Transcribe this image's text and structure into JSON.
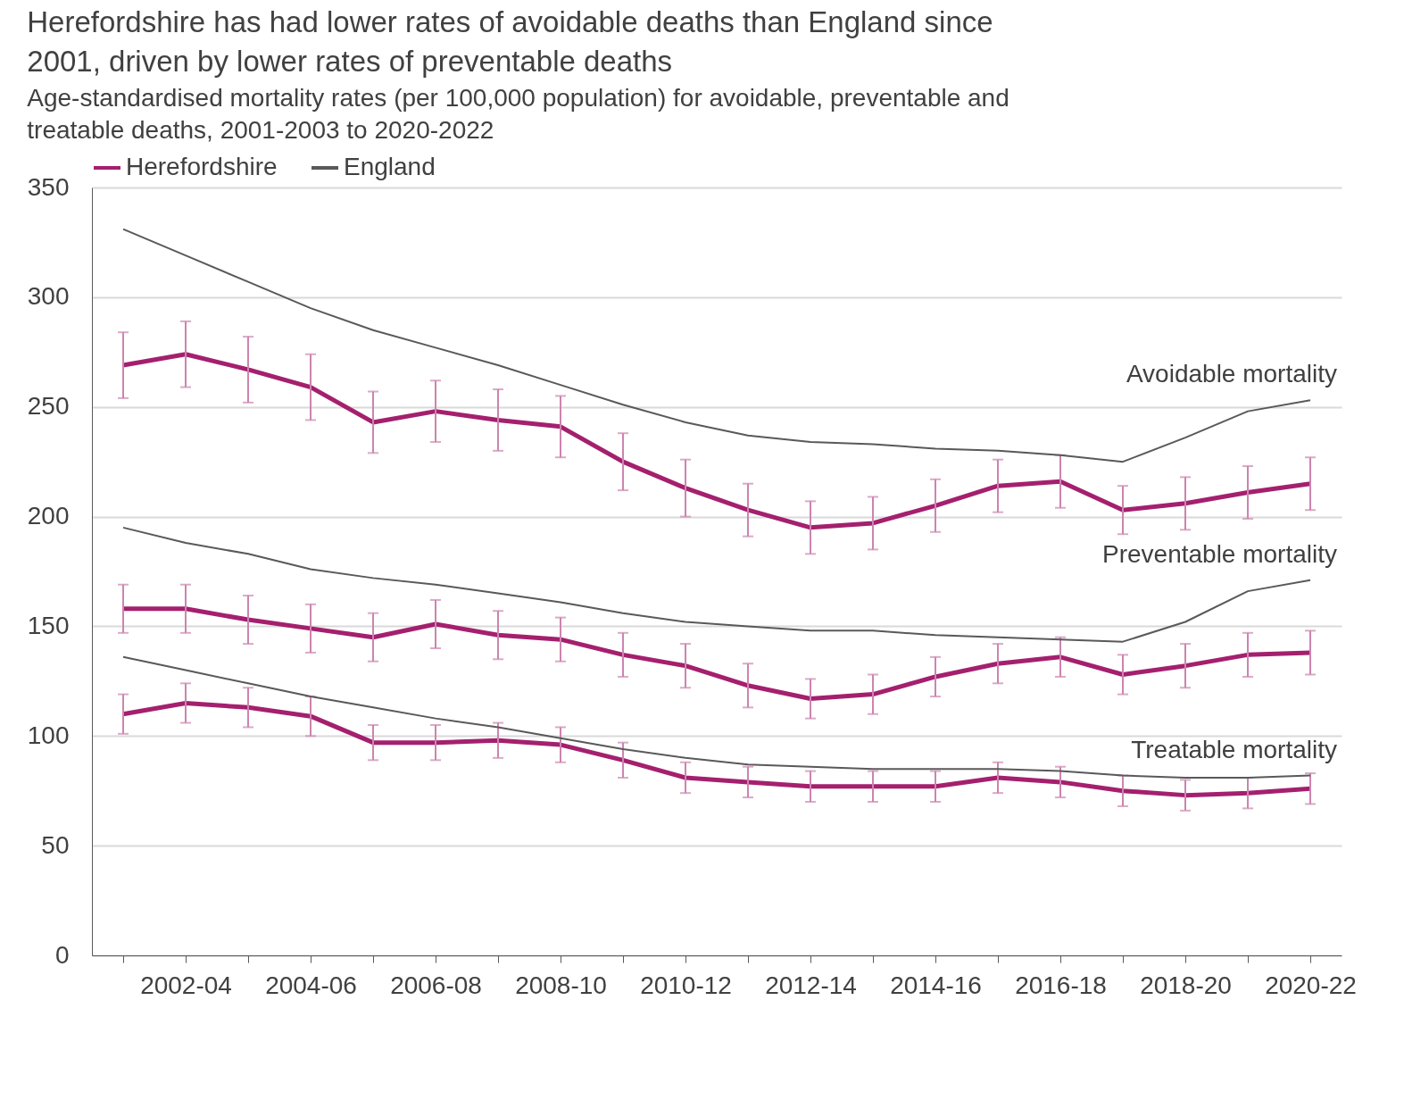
{
  "chart_data": {
    "type": "line",
    "title": "Herefordshire has had lower rates of avoidable deaths than England since 2001, driven by lower rates of preventable deaths",
    "subtitle": "Age-standardised mortality rates (per 100,000 population) for avoidable, preventable and treatable deaths, 2001-2003 to 2020-2022",
    "categories": [
      null,
      "2002-04",
      null,
      "2004-06",
      null,
      "2006-08",
      null,
      "2008-10",
      null,
      "2010-12",
      null,
      "2012-14",
      null,
      "2014-16",
      null,
      "2016-18",
      null,
      "2018-20",
      null,
      "2020-22"
    ],
    "series": [
      {
        "name": "Herefordshire",
        "color": "#a4206e",
        "values": [
          269,
          274,
          267,
          259,
          243,
          248,
          244,
          241,
          225,
          213,
          203,
          195,
          197,
          205,
          214,
          216,
          203,
          206,
          211,
          215
        ],
        "errors": [
          15,
          15,
          15,
          15,
          14,
          14,
          14,
          14,
          13,
          13,
          12,
          12,
          12,
          12,
          12,
          12,
          11,
          12,
          12,
          12
        ]
      },
      {
        "name": "England",
        "color": "#595959",
        "values": [
          331,
          319,
          307,
          295,
          285,
          277,
          269,
          260,
          251,
          243,
          237,
          234,
          233,
          231,
          230,
          228,
          225,
          236,
          248,
          253
        ]
      },
      {
        "color": "#a4206e",
        "values": [
          158,
          158,
          153,
          149,
          145,
          151,
          146,
          144,
          137,
          132,
          123,
          117,
          119,
          127,
          133,
          136,
          128,
          132,
          137,
          138
        ],
        "errors": [
          11,
          11,
          11,
          11,
          11,
          11,
          11,
          10,
          10,
          10,
          10,
          9,
          9,
          9,
          9,
          9,
          9,
          10,
          10,
          10
        ]
      },
      {
        "color": "#595959",
        "values": [
          195,
          188,
          183,
          176,
          172,
          169,
          165,
          161,
          156,
          152,
          150,
          148,
          148,
          146,
          145,
          144,
          143,
          152,
          166,
          171
        ]
      },
      {
        "color": "#a4206e",
        "values": [
          110,
          115,
          113,
          109,
          97,
          97,
          98,
          96,
          89,
          81,
          79,
          77,
          77,
          77,
          81,
          79,
          75,
          73,
          74,
          76
        ],
        "errors": [
          9,
          9,
          9,
          9,
          8,
          8,
          8,
          8,
          8,
          7,
          7,
          7,
          7,
          7,
          7,
          7,
          7,
          7,
          7,
          7
        ]
      },
      {
        "color": "#595959",
        "values": [
          136,
          130,
          124,
          118,
          113,
          108,
          104,
          99,
          94,
          90,
          87,
          86,
          85,
          85,
          85,
          84,
          82,
          81,
          81,
          82
        ]
      }
    ],
    "annotations": [
      "Avoidable mortality",
      "Preventable mortality",
      "Treatable mortality"
    ],
    "ylim": [
      0,
      350
    ],
    "yticks": [
      0,
      50,
      100,
      150,
      200,
      250,
      300,
      350
    ],
    "grid": "y",
    "legend": "top left"
  }
}
